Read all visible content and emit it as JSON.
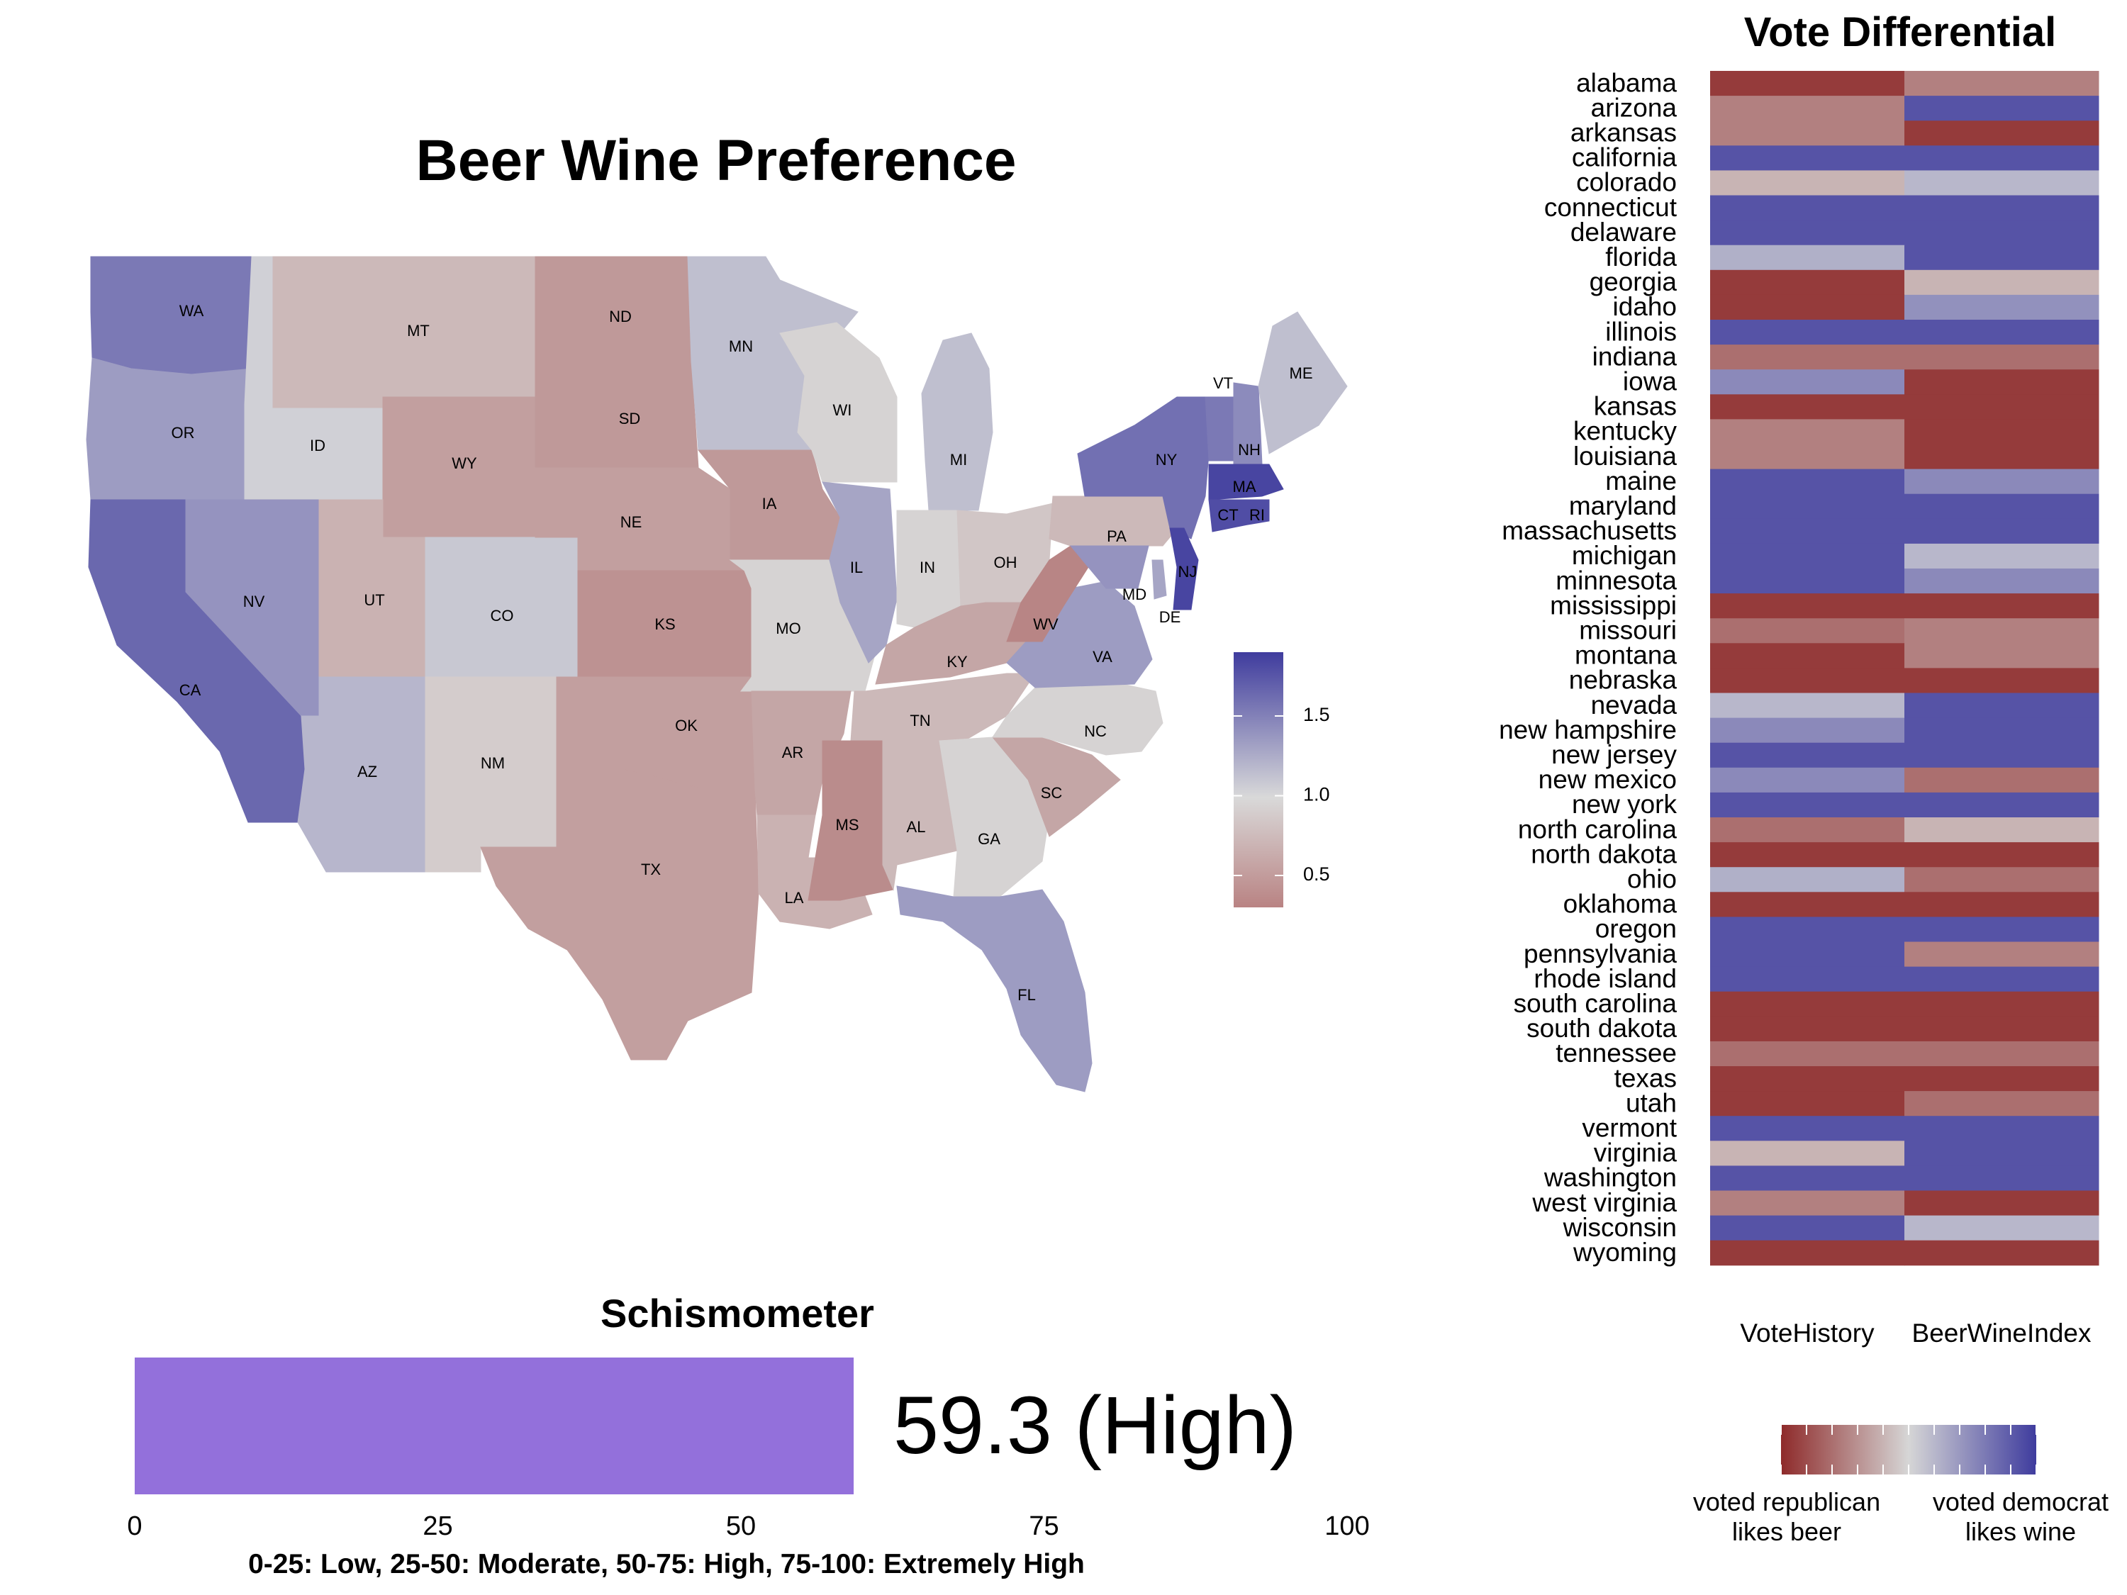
{
  "map": {
    "title": "Beer Wine Preference",
    "legend": {
      "ticks": [
        "1.5",
        "1.0",
        "0.5"
      ],
      "tick_values": [
        1.5,
        1.0,
        0.5
      ],
      "range": [
        0.3,
        1.9
      ]
    },
    "states": [
      {
        "abbr": "WA",
        "value": 1.55
      },
      {
        "abbr": "OR",
        "value": 1.35
      },
      {
        "abbr": "CA",
        "value": 1.65
      },
      {
        "abbr": "ID",
        "value": 1.05
      },
      {
        "abbr": "NV",
        "value": 1.4
      },
      {
        "abbr": "MT",
        "value": 0.75
      },
      {
        "abbr": "WY",
        "value": 0.55
      },
      {
        "abbr": "UT",
        "value": 0.7
      },
      {
        "abbr": "AZ",
        "value": 1.2
      },
      {
        "abbr": "CO",
        "value": 1.1
      },
      {
        "abbr": "NM",
        "value": 0.9
      },
      {
        "abbr": "ND",
        "value": 0.5
      },
      {
        "abbr": "SD",
        "value": 0.5
      },
      {
        "abbr": "NE",
        "value": 0.55
      },
      {
        "abbr": "KS",
        "value": 0.45
      },
      {
        "abbr": "OK",
        "value": 0.55
      },
      {
        "abbr": "TX",
        "value": 0.55
      },
      {
        "abbr": "MN",
        "value": 1.15
      },
      {
        "abbr": "IA",
        "value": 0.5
      },
      {
        "abbr": "MO",
        "value": 0.95
      },
      {
        "abbr": "AR",
        "value": 0.6
      },
      {
        "abbr": "LA",
        "value": 0.7
      },
      {
        "abbr": "WI",
        "value": 0.95
      },
      {
        "abbr": "IL",
        "value": 1.3
      },
      {
        "abbr": "MI",
        "value": 1.15
      },
      {
        "abbr": "IN",
        "value": 0.95
      },
      {
        "abbr": "OH",
        "value": 0.85
      },
      {
        "abbr": "KY",
        "value": 0.6
      },
      {
        "abbr": "TN",
        "value": 0.75
      },
      {
        "abbr": "MS",
        "value": 0.4
      },
      {
        "abbr": "AL",
        "value": 0.75
      },
      {
        "abbr": "GA",
        "value": 0.95
      },
      {
        "abbr": "FL",
        "value": 1.35
      },
      {
        "abbr": "SC",
        "value": 0.6
      },
      {
        "abbr": "NC",
        "value": 0.95
      },
      {
        "abbr": "VA",
        "value": 1.35
      },
      {
        "abbr": "WV",
        "value": 0.35
      },
      {
        "abbr": "PA",
        "value": 0.75
      },
      {
        "abbr": "NY",
        "value": 1.6
      },
      {
        "abbr": "VT",
        "value": 1.55
      },
      {
        "abbr": "NH",
        "value": 1.45
      },
      {
        "abbr": "ME",
        "value": 1.15
      },
      {
        "abbr": "MA",
        "value": 1.85
      },
      {
        "abbr": "CT",
        "value": 1.8
      },
      {
        "abbr": "RI",
        "value": 1.8
      },
      {
        "abbr": "NJ",
        "value": 1.85
      },
      {
        "abbr": "DE",
        "value": 1.3
      },
      {
        "abbr": "MD",
        "value": 1.4
      }
    ]
  },
  "heatmap": {
    "title": "Vote Differential",
    "columns": [
      "VoteHistory",
      "BeerWineIndex"
    ],
    "legend": {
      "left_caption": [
        "voted republican",
        "likes beer"
      ],
      "right_caption": [
        "voted democrat",
        "likes wine"
      ]
    },
    "colors": {
      "republican": "#8e2a2a",
      "democrat": "#3f3c9e",
      "neutral": "#d6d6d6"
    }
  },
  "chart_data": [
    {
      "type": "heatmap",
      "title": "Vote Differential",
      "columns": [
        "VoteHistory",
        "BeerWineIndex"
      ],
      "scale": "-1 = voted republican / likes beer, +1 = voted democrat / likes wine",
      "rows": [
        {
          "state": "alabama",
          "values": [
            -0.9,
            -0.5
          ]
        },
        {
          "state": "arizona",
          "values": [
            -0.5,
            0.85
          ]
        },
        {
          "state": "arkansas",
          "values": [
            -0.5,
            -0.9
          ]
        },
        {
          "state": "california",
          "values": [
            0.85,
            0.85
          ]
        },
        {
          "state": "colorado",
          "values": [
            -0.2,
            0.2
          ]
        },
        {
          "state": "connecticut",
          "values": [
            0.85,
            0.85
          ]
        },
        {
          "state": "delaware",
          "values": [
            0.85,
            0.85
          ]
        },
        {
          "state": "florida",
          "values": [
            0.25,
            0.85
          ]
        },
        {
          "state": "georgia",
          "values": [
            -0.9,
            -0.2
          ]
        },
        {
          "state": "idaho",
          "values": [
            -0.9,
            0.45
          ]
        },
        {
          "state": "illinois",
          "values": [
            0.85,
            0.85
          ]
        },
        {
          "state": "indiana",
          "values": [
            -0.6,
            -0.6
          ]
        },
        {
          "state": "iowa",
          "values": [
            0.5,
            -0.9
          ]
        },
        {
          "state": "kansas",
          "values": [
            -0.9,
            -0.9
          ]
        },
        {
          "state": "kentucky",
          "values": [
            -0.5,
            -0.9
          ]
        },
        {
          "state": "louisiana",
          "values": [
            -0.5,
            -0.9
          ]
        },
        {
          "state": "maine",
          "values": [
            0.85,
            0.5
          ]
        },
        {
          "state": "maryland",
          "values": [
            0.85,
            0.85
          ]
        },
        {
          "state": "massachusetts",
          "values": [
            0.85,
            0.85
          ]
        },
        {
          "state": "michigan",
          "values": [
            0.85,
            0.2
          ]
        },
        {
          "state": "minnesota",
          "values": [
            0.85,
            0.5
          ]
        },
        {
          "state": "mississippi",
          "values": [
            -0.9,
            -0.9
          ]
        },
        {
          "state": "missouri",
          "values": [
            -0.6,
            -0.5
          ]
        },
        {
          "state": "montana",
          "values": [
            -0.9,
            -0.5
          ]
        },
        {
          "state": "nebraska",
          "values": [
            -0.9,
            -0.9
          ]
        },
        {
          "state": "nevada",
          "values": [
            0.2,
            0.85
          ]
        },
        {
          "state": "new hampshire",
          "values": [
            0.5,
            0.85
          ]
        },
        {
          "state": "new jersey",
          "values": [
            0.85,
            0.85
          ]
        },
        {
          "state": "new mexico",
          "values": [
            0.5,
            -0.6
          ]
        },
        {
          "state": "new york",
          "values": [
            0.85,
            0.85
          ]
        },
        {
          "state": "north carolina",
          "values": [
            -0.6,
            -0.2
          ]
        },
        {
          "state": "north dakota",
          "values": [
            -0.9,
            -0.9
          ]
        },
        {
          "state": "ohio",
          "values": [
            0.25,
            -0.6
          ]
        },
        {
          "state": "oklahoma",
          "values": [
            -0.9,
            -0.9
          ]
        },
        {
          "state": "oregon",
          "values": [
            0.85,
            0.85
          ]
        },
        {
          "state": "pennsylvania",
          "values": [
            0.85,
            -0.5
          ]
        },
        {
          "state": "rhode island",
          "values": [
            0.85,
            0.85
          ]
        },
        {
          "state": "south carolina",
          "values": [
            -0.9,
            -0.9
          ]
        },
        {
          "state": "south dakota",
          "values": [
            -0.9,
            -0.9
          ]
        },
        {
          "state": "tennessee",
          "values": [
            -0.6,
            -0.6
          ]
        },
        {
          "state": "texas",
          "values": [
            -0.9,
            -0.9
          ]
        },
        {
          "state": "utah",
          "values": [
            -0.9,
            -0.6
          ]
        },
        {
          "state": "vermont",
          "values": [
            0.85,
            0.85
          ]
        },
        {
          "state": "virginia",
          "values": [
            -0.2,
            0.85
          ]
        },
        {
          "state": "washington",
          "values": [
            0.85,
            0.85
          ]
        },
        {
          "state": "west virginia",
          "values": [
            -0.5,
            -0.9
          ]
        },
        {
          "state": "wisconsin",
          "values": [
            0.85,
            0.2
          ]
        },
        {
          "state": "wyoming",
          "values": [
            -0.9,
            -0.9
          ]
        }
      ]
    },
    {
      "type": "bar",
      "title": "Schismometer",
      "values": [
        59.3
      ],
      "value_label": "59.3 (High)",
      "xlim": [
        0,
        100
      ],
      "xticks": [
        "0",
        "25",
        "50",
        "75",
        "100"
      ],
      "note": "0-25: Low, 25-50: Moderate, 50-75: High, 75-100: Extremely High",
      "color": "#9370db"
    }
  ]
}
